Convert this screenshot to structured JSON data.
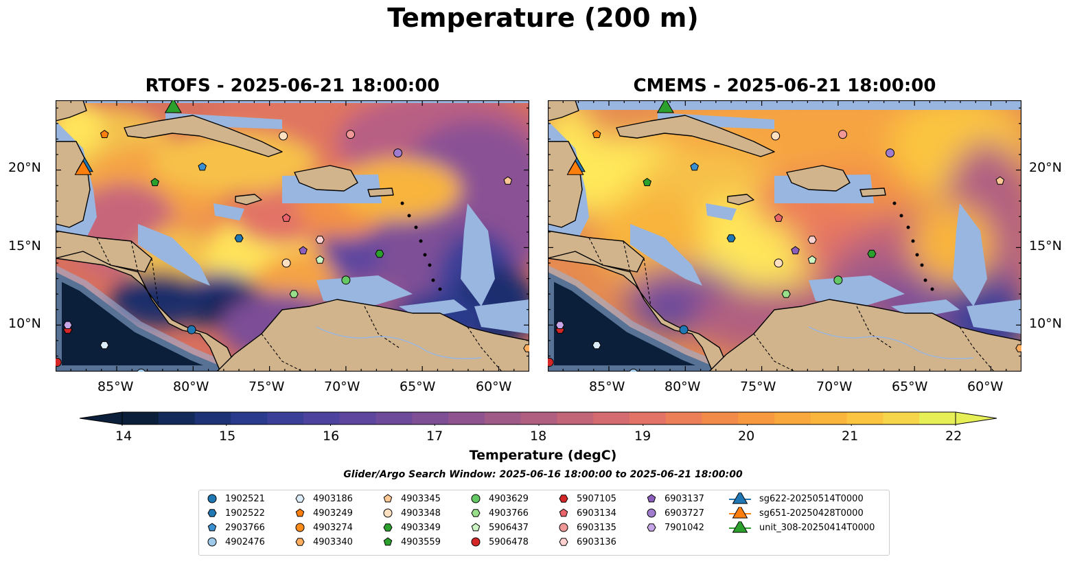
{
  "title": "Temperature (200 m)",
  "panels": [
    {
      "title": "RTOFS - 2025-06-21 18:00:00"
    },
    {
      "title": "CMEMS - 2025-06-21 18:00:00"
    }
  ],
  "axes": {
    "lon_ticks": [
      "85°W",
      "80°W",
      "75°W",
      "70°W",
      "65°W",
      "60°W"
    ],
    "lat_ticks": [
      "20°N",
      "15°N",
      "10°N"
    ]
  },
  "colorbar": {
    "label": "Temperature (degC)",
    "ticks": [
      "14",
      "15",
      "16",
      "17",
      "18",
      "19",
      "20",
      "21",
      "22"
    ],
    "range": [
      14,
      22
    ],
    "colors": [
      "#0b1f3a",
      "#13295a",
      "#1d3375",
      "#2a3a8c",
      "#3b3f98",
      "#4d439f",
      "#5e469f",
      "#6e4a9b",
      "#7f4f96",
      "#8f5490",
      "#a05a88",
      "#b15f80",
      "#c26579",
      "#d36b70",
      "#e27366",
      "#ec7e58",
      "#f28b49",
      "#f6993f",
      "#f8a83c",
      "#fab63c",
      "#fbc541",
      "#f7d54b",
      "#e7ef57"
    ]
  },
  "search_window": "Glider/Argo Search Window: 2025-06-16 18:00:00 to 2025-06-21 18:00:00",
  "legend": {
    "columns": [
      [
        {
          "label": "1902521",
          "marker": "circle",
          "color": "#1f77b4"
        },
        {
          "label": "1902522",
          "marker": "hexagon",
          "color": "#1f77b4"
        },
        {
          "label": "2903766",
          "marker": "pentagon",
          "color": "#3a8fd0"
        },
        {
          "label": "4902476",
          "marker": "circle",
          "color": "#9ec9e8"
        }
      ],
      [
        {
          "label": "4903186",
          "marker": "hexagon",
          "color": "#dcecf8"
        },
        {
          "label": "4903249",
          "marker": "pentagon",
          "color": "#ff7f0e"
        },
        {
          "label": "4903274",
          "marker": "circle",
          "color": "#ff8c1a"
        },
        {
          "label": "4903340",
          "marker": "hexagon",
          "color": "#ffad5e"
        }
      ],
      [
        {
          "label": "4903345",
          "marker": "pentagon",
          "color": "#ffc894"
        },
        {
          "label": "4903348",
          "marker": "circle",
          "color": "#ffe0c0"
        },
        {
          "label": "4903349",
          "marker": "hexagon",
          "color": "#2ca02c"
        },
        {
          "label": "4903559",
          "marker": "pentagon",
          "color": "#2ca02c"
        }
      ],
      [
        {
          "label": "4903629",
          "marker": "circle",
          "color": "#64c864"
        },
        {
          "label": "4903766",
          "marker": "hexagon",
          "color": "#98df8a"
        },
        {
          "label": "5906437",
          "marker": "pentagon",
          "color": "#cdf5c4"
        },
        {
          "label": "5906478",
          "marker": "circle",
          "color": "#d62728"
        }
      ],
      [
        {
          "label": "5907105",
          "marker": "hexagon",
          "color": "#d62728"
        },
        {
          "label": "6903134",
          "marker": "pentagon",
          "color": "#e8636a"
        },
        {
          "label": "6903135",
          "marker": "circle",
          "color": "#f09898"
        },
        {
          "label": "6903136",
          "marker": "hexagon",
          "color": "#ffd0d0"
        }
      ],
      [
        {
          "label": "6903137",
          "marker": "pentagon",
          "color": "#8c5fbd"
        },
        {
          "label": "6903727",
          "marker": "circle",
          "color": "#a07ccf"
        },
        {
          "label": "7901042",
          "marker": "hexagon",
          "color": "#c6a6e6"
        }
      ],
      [
        {
          "label": "sg622-20250514T0000",
          "marker": "triangle",
          "color": "#1f77b4"
        },
        {
          "label": "sg651-20250428T0000",
          "marker": "triangle",
          "color": "#ff7f0e"
        },
        {
          "label": "unit_308-20250414T0000",
          "marker": "triangle",
          "color": "#2ca02c"
        }
      ]
    ]
  },
  "map_colors": {
    "land": "#d1b48c",
    "shelf": "#98b6e0",
    "deep": "#0b1f3a"
  },
  "floats": [
    {
      "id": "1902521",
      "lon": -80.1,
      "lat": 9.7,
      "marker": "circle",
      "color": "#1f77b4"
    },
    {
      "id": "1902522",
      "lon": -77.0,
      "lat": 15.6,
      "marker": "hexagon",
      "color": "#1f77b4"
    },
    {
      "id": "2903766",
      "lon": -79.4,
      "lat": 20.2,
      "marker": "pentagon",
      "color": "#3a8fd0"
    },
    {
      "id": "4902476",
      "lon": -83.4,
      "lat": 6.9,
      "marker": "circle",
      "color": "#9ec9e8"
    },
    {
      "id": "4903186",
      "lon": -85.8,
      "lat": 8.7,
      "marker": "hexagon",
      "color": "#dcecf8"
    },
    {
      "id": "4903249",
      "lon": -85.8,
      "lat": 22.3,
      "marker": "pentagon",
      "color": "#ff7f0e"
    },
    {
      "id": "4903340",
      "lon": -58.1,
      "lat": 8.5,
      "marker": "hexagon",
      "color": "#ffad5e"
    },
    {
      "id": "4903345",
      "lon": -59.4,
      "lat": 19.3,
      "marker": "pentagon",
      "color": "#ffc894"
    },
    {
      "id": "4903348",
      "lon": -74.1,
      "lat": 22.2,
      "marker": "circle",
      "color": "#ffe0c0"
    },
    {
      "id": "4903348b",
      "lon": -73.9,
      "lat": 14.0,
      "marker": "circle",
      "color": "#ffe0c0"
    },
    {
      "id": "4903349",
      "lon": -67.8,
      "lat": 14.6,
      "marker": "hexagon",
      "color": "#2ca02c"
    },
    {
      "id": "4903559",
      "lon": -82.5,
      "lat": 19.2,
      "marker": "pentagon",
      "color": "#2ca02c"
    },
    {
      "id": "4903629",
      "lon": -70.0,
      "lat": 12.9,
      "marker": "circle",
      "color": "#64c864"
    },
    {
      "id": "4903766",
      "lon": -73.4,
      "lat": 12.0,
      "marker": "hexagon",
      "color": "#98df8a"
    },
    {
      "id": "5906437",
      "lon": -71.7,
      "lat": 14.2,
      "marker": "pentagon",
      "color": "#cdf5c4"
    },
    {
      "id": "5906478",
      "lon": -88.9,
      "lat": 7.6,
      "marker": "circle",
      "color": "#d62728"
    },
    {
      "id": "5907105",
      "lon": -88.2,
      "lat": 9.7,
      "marker": "hexagon",
      "color": "#d62728"
    },
    {
      "id": "6903134",
      "lon": -73.9,
      "lat": 16.9,
      "marker": "pentagon",
      "color": "#e8636a"
    },
    {
      "id": "6903135",
      "lon": -69.7,
      "lat": 22.3,
      "marker": "circle",
      "color": "#f09898"
    },
    {
      "id": "6903136",
      "lon": -71.7,
      "lat": 15.5,
      "marker": "hexagon",
      "color": "#ffd0d0"
    },
    {
      "id": "6903137",
      "lon": -72.8,
      "lat": 14.8,
      "marker": "pentagon",
      "color": "#8c5fbd"
    },
    {
      "id": "6903727",
      "lon": -66.6,
      "lat": 21.1,
      "marker": "circle",
      "color": "#a07ccf"
    },
    {
      "id": "7901042",
      "lon": -88.2,
      "lat": 10.0,
      "marker": "hexagon",
      "color": "#c6a6e6"
    }
  ],
  "gliders": [
    {
      "id": "sg622-20250514T0000",
      "lon": -87.1,
      "lat": 20.2,
      "color": "#1f77b4"
    },
    {
      "id": "sg651-20250428T0000",
      "lon": -87.2,
      "lat": 20.0,
      "color": "#ff7f0e"
    },
    {
      "id": "unit_308-20250414T0000",
      "lon": -81.3,
      "lat": 24.0,
      "color": "#2ca02c"
    }
  ]
}
